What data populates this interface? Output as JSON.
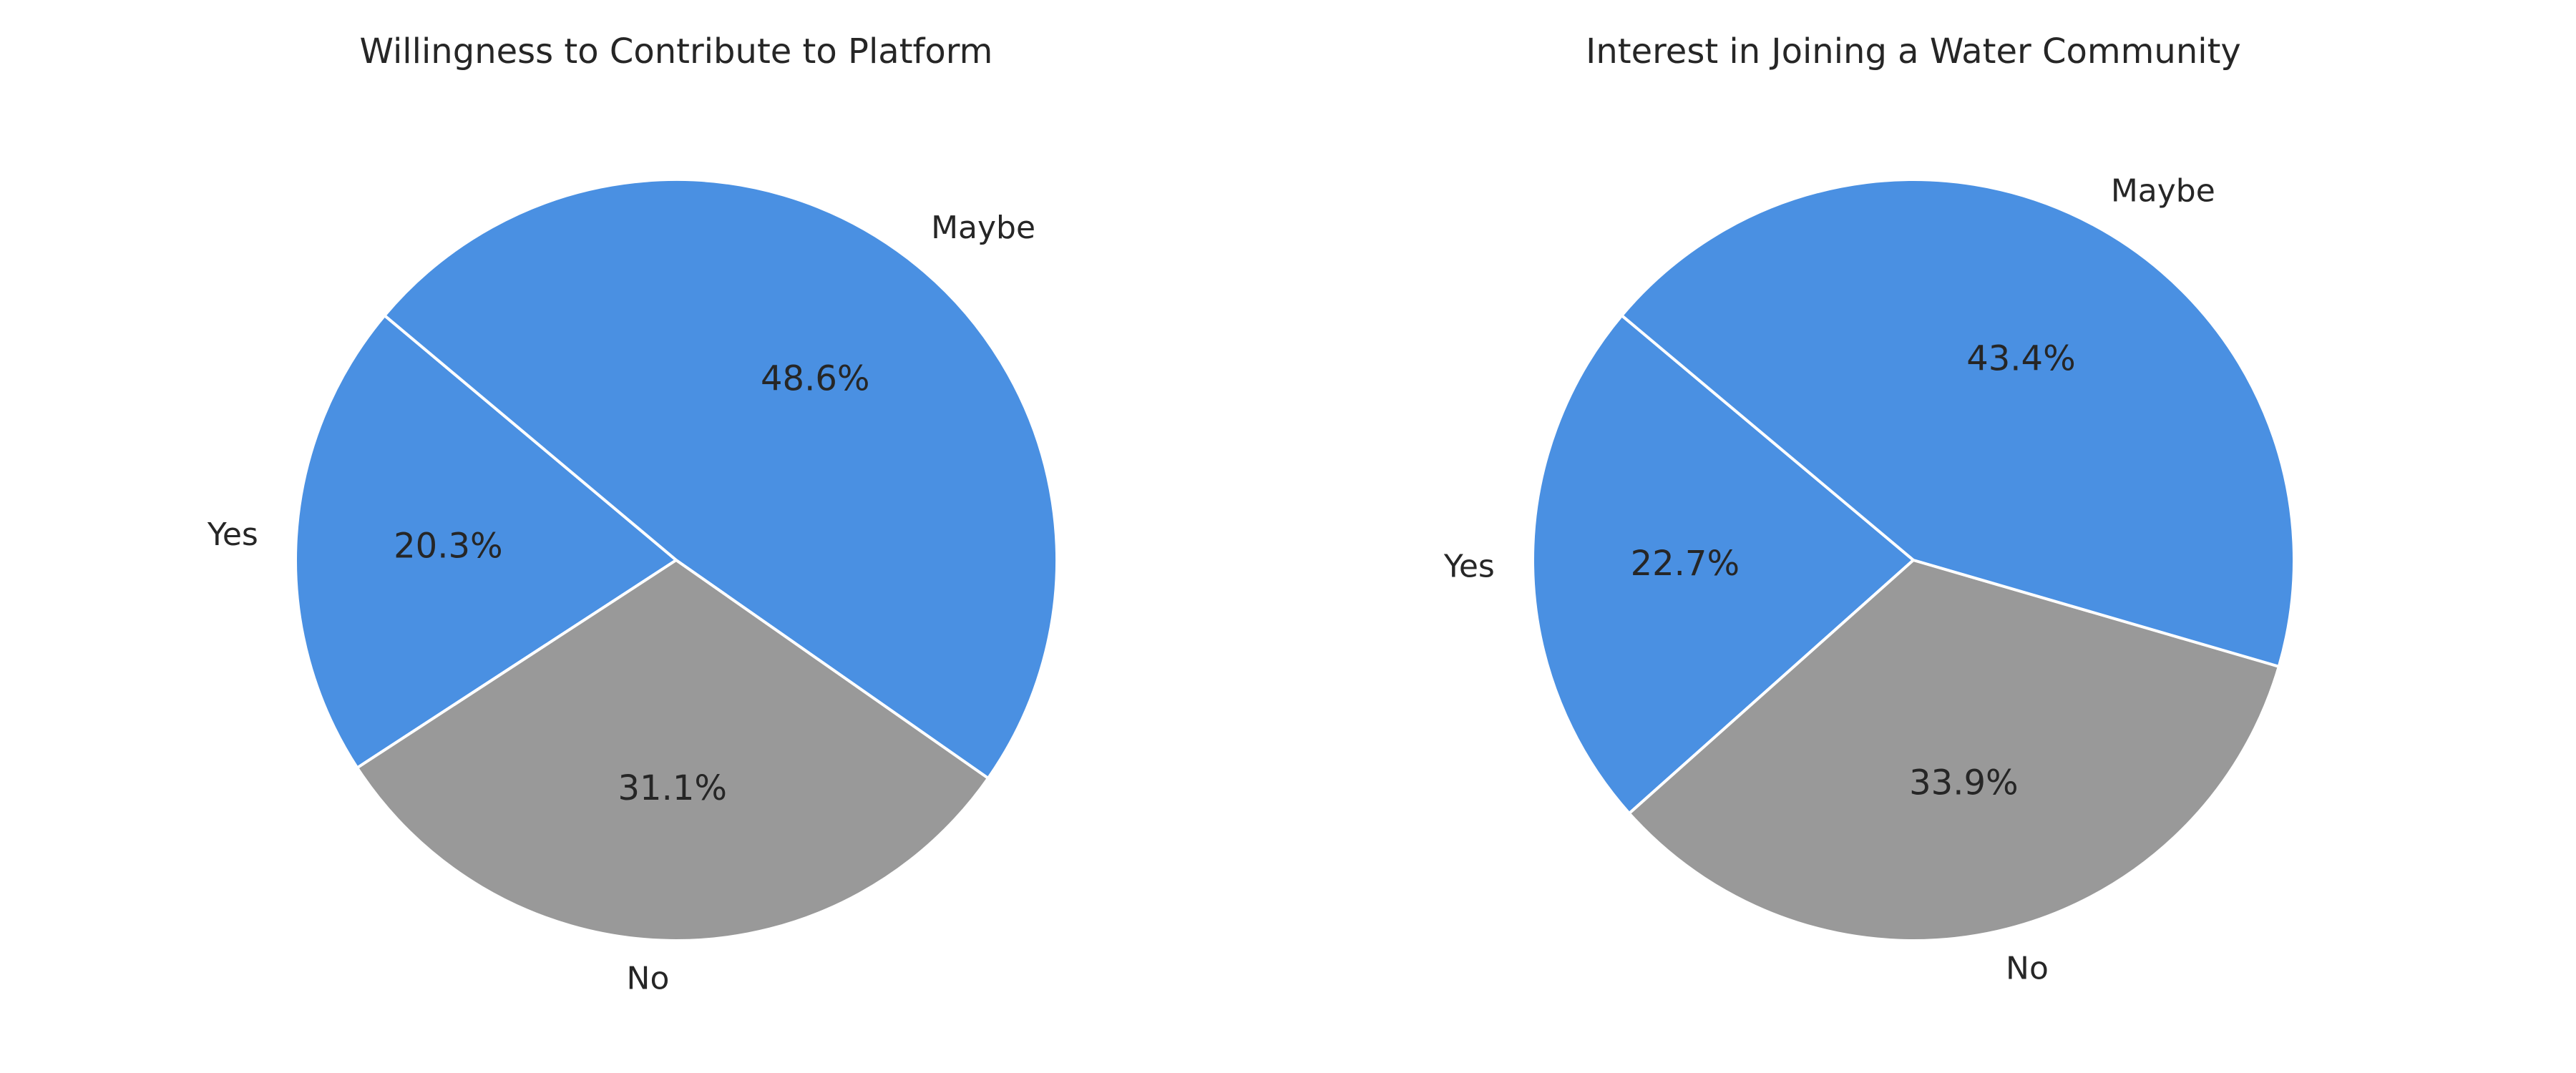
{
  "chart_data": [
    {
      "type": "pie",
      "title": "Willingness to Contribute to Platform",
      "slices": [
        {
          "label": "Yes",
          "value": 20.3,
          "pct_text": "20.3%",
          "color": "#4A90E2"
        },
        {
          "label": "No",
          "value": 31.1,
          "pct_text": "31.1%",
          "color": "#999999"
        },
        {
          "label": "Maybe",
          "value": 48.6,
          "pct_text": "48.6%",
          "color": "#4A90E2"
        }
      ]
    },
    {
      "type": "pie",
      "title": "Interest in Joining a Water Community",
      "slices": [
        {
          "label": "Yes",
          "value": 22.7,
          "pct_text": "22.7%",
          "color": "#4A90E2"
        },
        {
          "label": "No",
          "value": 33.9,
          "pct_text": "33.9%",
          "color": "#999999"
        },
        {
          "label": "Maybe",
          "value": 43.4,
          "pct_text": "43.4%",
          "color": "#4A90E2"
        }
      ]
    }
  ]
}
